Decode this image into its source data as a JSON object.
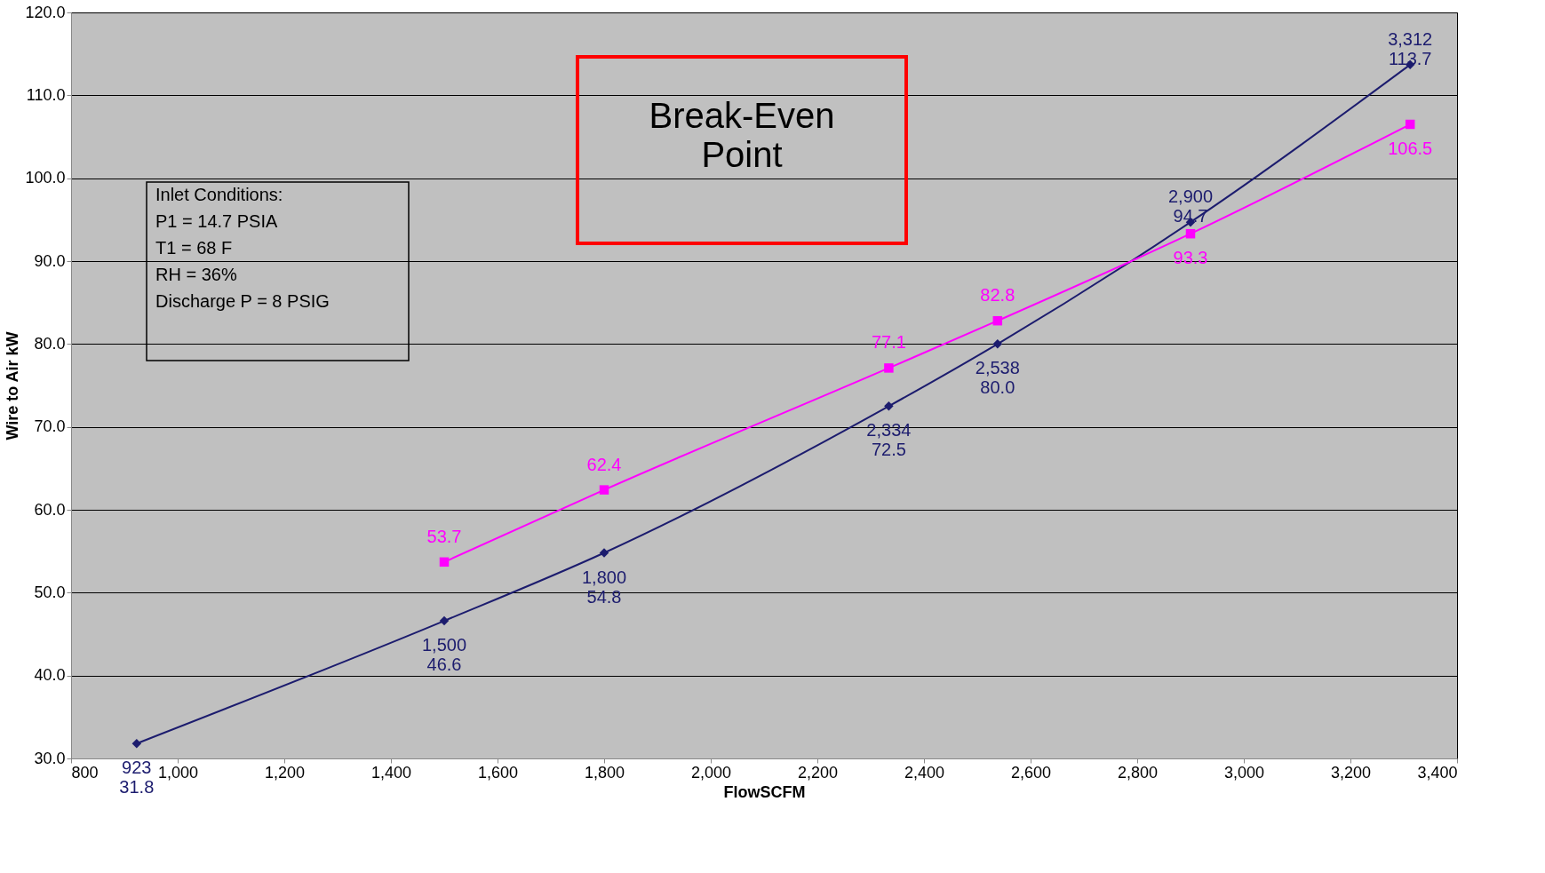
{
  "chart_data": {
    "type": "line",
    "xlabel": "FlowSCFM",
    "ylabel": "Wire to Air kW",
    "xlim": [
      800,
      3400
    ],
    "ylim": [
      30,
      120
    ],
    "xticks": [
      800,
      {
        "value": 1000,
        "label": "1,000"
      },
      {
        "value": 1200,
        "label": "1,200"
      },
      {
        "value": 1400,
        "label": "1,400"
      },
      {
        "value": 1600,
        "label": "1,600"
      },
      {
        "value": 1800,
        "label": "1,800"
      },
      {
        "value": 2000,
        "label": "2,000"
      },
      {
        "value": 2200,
        "label": "2,200"
      },
      {
        "value": 2400,
        "label": "2,400"
      },
      {
        "value": 2600,
        "label": "2,600"
      },
      {
        "value": 2800,
        "label": "2,800"
      },
      {
        "value": 3000,
        "label": "3,000"
      },
      {
        "value": 3200,
        "label": "3,200"
      },
      {
        "value": 3400,
        "label": "3,400"
      }
    ],
    "yticks": [
      {
        "value": 30,
        "label": "30.0"
      },
      {
        "value": 40,
        "label": "40.0"
      },
      {
        "value": 50,
        "label": "50.0"
      },
      {
        "value": 60,
        "label": "60.0"
      },
      {
        "value": 70,
        "label": "70.0"
      },
      {
        "value": 80,
        "label": "80.0"
      },
      {
        "value": 90,
        "label": "90.0"
      },
      {
        "value": 100,
        "label": "100.0"
      },
      {
        "value": 110,
        "label": "110.0"
      },
      {
        "value": 120,
        "label": "120.0"
      }
    ],
    "grid": "y",
    "line_style": "solid",
    "series": [
      {
        "color": "#1c1c6e",
        "marker": "diamond",
        "x": [
          923,
          1500,
          1800,
          2334,
          2538,
          2900,
          3312
        ],
        "values": [
          31.8,
          46.6,
          54.8,
          72.5,
          80.0,
          94.7,
          113.7
        ],
        "value_labels": [
          "923\n31.8",
          "1,500\n46.6",
          "1,800\n54.8",
          "2,334\n72.5",
          "2,538\n80.0",
          "2,900\n94.7",
          "3,312\n113.7"
        ]
      },
      {
        "color": "#ff00ff",
        "marker": "square",
        "x": [
          1500,
          1800,
          2334,
          2538,
          2900,
          3312
        ],
        "values": [
          53.7,
          62.4,
          77.1,
          82.8,
          93.3,
          106.5
        ],
        "value_labels": [
          "53.7",
          "62.4",
          "77.1",
          "82.8",
          "93.3",
          "106.5"
        ]
      }
    ],
    "annotations": [
      "Break-Even\nPoint",
      "Inlet Conditions:\nP1 = 14.7 PSIA\nT1 = 68 F\nRH = 36%\n\nDischarge P = 8 PSIG"
    ]
  }
}
